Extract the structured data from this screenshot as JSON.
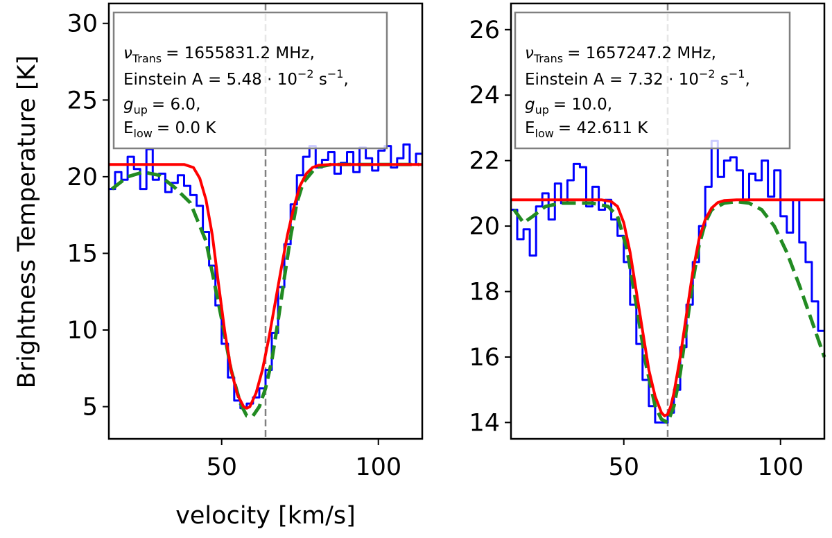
{
  "figure": {
    "ylabel": "Brightness Temperature [K]",
    "xlabel": "velocity [km/s]"
  },
  "colors": {
    "observed": "#0000ff",
    "model_fit": "#ff0000",
    "alt_fit": "#228b22",
    "vline": "#808080",
    "legend_border": "#808080"
  },
  "chart_data": [
    {
      "type": "line",
      "xlim": [
        14,
        114
      ],
      "ylim": [
        2.9,
        31.3
      ],
      "xticks": [
        50,
        100
      ],
      "yticks": [
        5,
        10,
        15,
        20,
        25,
        30
      ],
      "vline_x": 64,
      "annotation": {
        "nu_label": "ν",
        "nu_sub": "Trans",
        "nu_value": "= 1655831.2 MHz,",
        "einstein_prefix": "Einstein A = 5.48 · 10",
        "einstein_exp": "−2",
        "einstein_unit": " s",
        "einstein_unit_exp": "−1",
        "einstein_suffix": ",",
        "g_label": "g",
        "g_sub": "up",
        "g_value": "= 6.0,",
        "e_label": "E",
        "e_sub": "low",
        "e_value": "= 0.0 K"
      },
      "series": [
        {
          "name": "observed",
          "style": "step",
          "x": [
            15,
            17,
            19,
            21,
            23,
            25,
            27,
            29,
            31,
            33,
            35,
            37,
            39,
            41,
            43,
            45,
            47,
            49,
            51,
            53,
            55,
            57,
            59,
            61,
            63,
            65,
            67,
            69,
            71,
            73,
            75,
            77,
            79,
            81,
            83,
            85,
            87,
            89,
            91,
            93,
            95,
            97,
            99,
            101,
            103,
            105,
            107,
            109,
            111,
            113
          ],
          "y": [
            19.2,
            20.3,
            19.8,
            21.3,
            20.5,
            19.2,
            21.8,
            19.8,
            20.2,
            19.0,
            19.6,
            20.1,
            19.4,
            18.8,
            18.1,
            16.4,
            14.2,
            11.6,
            9.1,
            6.9,
            5.4,
            4.9,
            5.2,
            5.6,
            6.2,
            7.4,
            9.8,
            12.8,
            15.6,
            18.2,
            20.1,
            21.3,
            22.0,
            20.6,
            21.1,
            21.6,
            20.2,
            20.9,
            21.6,
            20.3,
            21.9,
            21.2,
            20.4,
            21.7,
            22.0,
            20.6,
            21.2,
            22.1,
            20.8,
            21.5
          ]
        },
        {
          "name": "alt-fit",
          "style": "dashed",
          "x": [
            15,
            20,
            25,
            30,
            35,
            40,
            45,
            50,
            53,
            56,
            58,
            60,
            62,
            64,
            66,
            68,
            70,
            72,
            74,
            76,
            80,
            85,
            90,
            95,
            100,
            105,
            110,
            113
          ],
          "y": [
            19.2,
            20.0,
            20.3,
            20.1,
            19.3,
            18.3,
            15.8,
            10.7,
            7.4,
            5.2,
            4.4,
            4.4,
            5.0,
            6.2,
            8.0,
            10.6,
            13.4,
            16.1,
            18.3,
            19.6,
            20.6,
            20.8,
            20.8,
            20.8,
            20.8,
            20.8,
            20.8,
            20.8
          ]
        },
        {
          "name": "model-fit",
          "style": "solid",
          "x": [
            14,
            20,
            30,
            38,
            41,
            43,
            45,
            47,
            49,
            51,
            53,
            55,
            57,
            58,
            59,
            61,
            63,
            65,
            67,
            69,
            71,
            73,
            75,
            77,
            79,
            81,
            85,
            90,
            100,
            114
          ],
          "y": [
            20.8,
            20.8,
            20.8,
            20.8,
            20.6,
            19.9,
            18.5,
            16.2,
            13.0,
            9.9,
            7.4,
            5.8,
            5.0,
            4.9,
            5.0,
            5.9,
            7.4,
            9.4,
            11.7,
            14.0,
            16.2,
            18.0,
            19.4,
            20.2,
            20.6,
            20.75,
            20.8,
            20.8,
            20.8,
            20.8
          ]
        }
      ]
    },
    {
      "type": "line",
      "xlim": [
        14,
        114
      ],
      "ylim": [
        13.5,
        26.8
      ],
      "xticks": [
        50,
        100
      ],
      "yticks": [
        14,
        16,
        18,
        20,
        22,
        24,
        26
      ],
      "vline_x": 64,
      "annotation": {
        "nu_label": "ν",
        "nu_sub": "Trans",
        "nu_value": "= 1657247.2 MHz,",
        "einstein_prefix": "Einstein A = 7.32 · 10",
        "einstein_exp": "−2",
        "einstein_unit": " s",
        "einstein_unit_exp": "−1",
        "einstein_suffix": ",",
        "g_label": "g",
        "g_sub": "up",
        "g_value": "= 10.0,",
        "e_label": "E",
        "e_sub": "low",
        "e_value": "= 42.611 K"
      },
      "series": [
        {
          "name": "observed",
          "style": "step",
          "x": [
            15,
            17,
            19,
            21,
            23,
            25,
            27,
            29,
            31,
            33,
            35,
            37,
            39,
            41,
            43,
            45,
            47,
            49,
            51,
            53,
            55,
            57,
            59,
            61,
            63,
            65,
            67,
            69,
            71,
            73,
            75,
            77,
            79,
            81,
            83,
            85,
            87,
            89,
            91,
            93,
            95,
            97,
            99,
            101,
            103,
            105,
            107,
            109,
            111,
            113
          ],
          "y": [
            20.5,
            19.6,
            19.9,
            19.1,
            20.6,
            21.0,
            20.2,
            21.3,
            20.7,
            21.4,
            21.9,
            21.8,
            20.6,
            21.2,
            20.5,
            20.8,
            20.2,
            19.7,
            18.9,
            17.6,
            16.4,
            15.3,
            14.5,
            14.0,
            14.0,
            14.3,
            15.0,
            16.3,
            17.6,
            18.9,
            20.0,
            21.2,
            22.6,
            21.5,
            22.0,
            22.1,
            21.7,
            20.8,
            21.6,
            21.4,
            22.0,
            20.9,
            21.7,
            20.3,
            19.8,
            20.8,
            19.5,
            18.9,
            17.7,
            16.8
          ]
        },
        {
          "name": "alt-fit",
          "style": "dashed",
          "x": [
            15,
            18,
            21,
            25,
            30,
            35,
            40,
            45,
            48,
            51,
            54,
            57,
            60,
            62,
            64,
            66,
            68,
            70,
            72,
            74,
            76,
            78,
            82,
            86,
            90,
            94,
            98,
            102,
            106,
            110,
            114
          ],
          "y": [
            20.5,
            20.1,
            20.3,
            20.6,
            20.7,
            20.7,
            20.7,
            20.6,
            20.3,
            19.3,
            17.6,
            15.8,
            14.5,
            14.1,
            14.0,
            14.5,
            15.5,
            16.9,
            18.3,
            19.4,
            20.1,
            20.5,
            20.7,
            20.75,
            20.7,
            20.5,
            20.0,
            19.2,
            18.2,
            17.1,
            16.0
          ]
        },
        {
          "name": "model-fit",
          "style": "solid",
          "x": [
            14,
            25,
            35,
            43,
            46,
            48,
            50,
            52,
            54,
            56,
            58,
            60,
            62,
            63,
            64,
            65,
            66,
            68,
            70,
            72,
            74,
            76,
            78,
            80,
            82,
            86,
            95,
            114
          ],
          "y": [
            20.8,
            20.8,
            20.8,
            20.8,
            20.75,
            20.6,
            20.1,
            19.2,
            18.0,
            16.8,
            15.6,
            14.8,
            14.3,
            14.2,
            14.25,
            14.5,
            14.9,
            16.0,
            17.3,
            18.6,
            19.6,
            20.2,
            20.55,
            20.72,
            20.78,
            20.8,
            20.8,
            20.8
          ]
        }
      ]
    }
  ]
}
